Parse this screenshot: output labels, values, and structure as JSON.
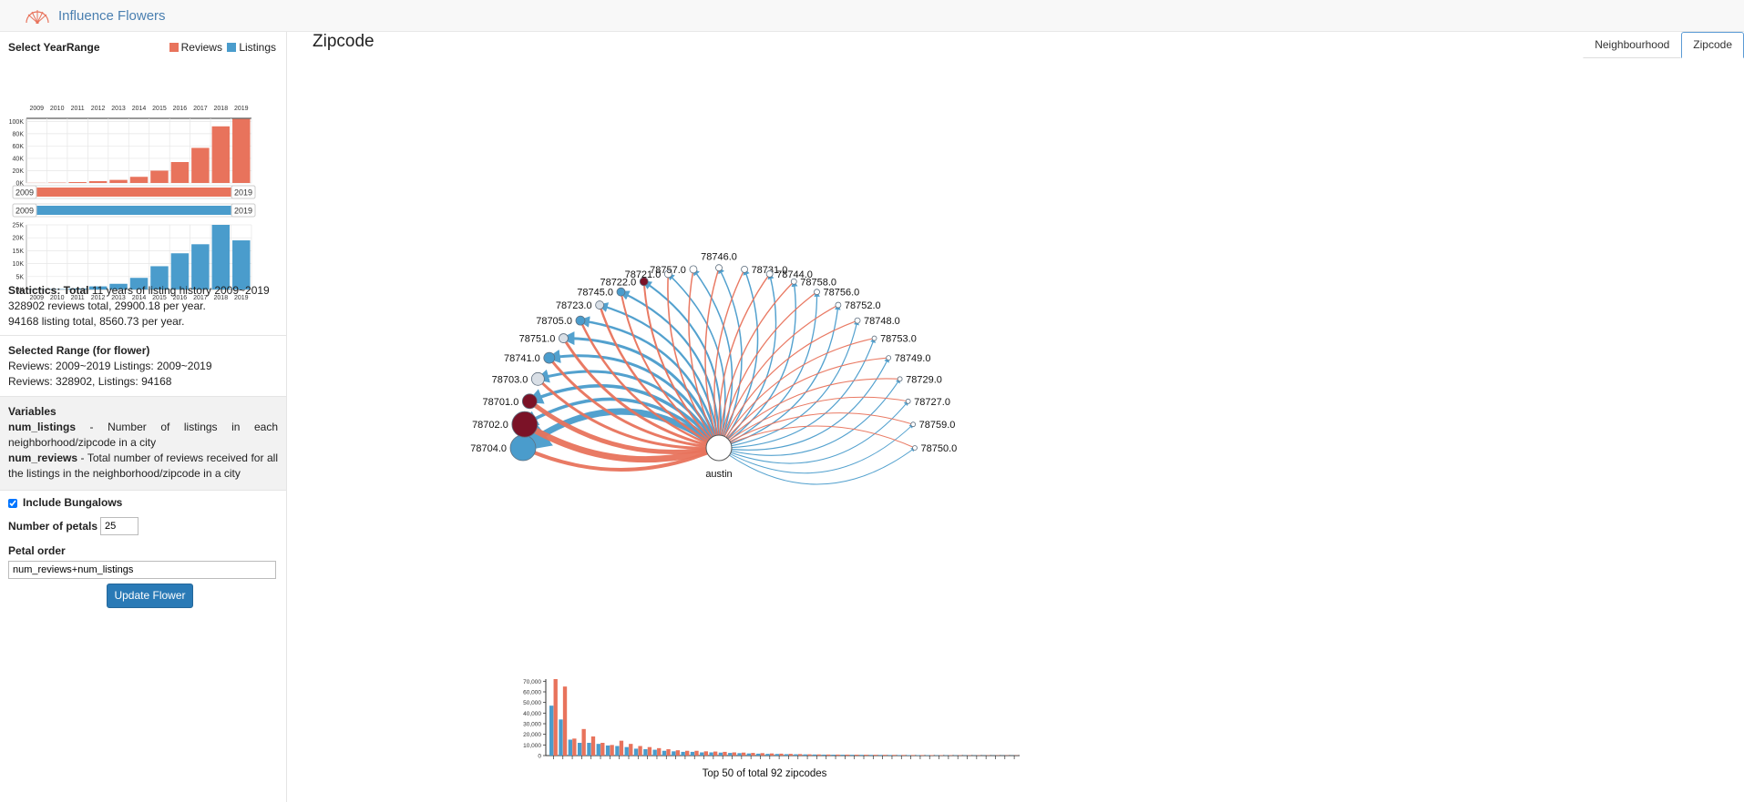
{
  "app": {
    "title": "Influence Flowers"
  },
  "colors": {
    "reviews": "#e8735c",
    "listings": "#4a9ccc",
    "dark_node": "#7b1227",
    "light_node": "#d9dfe6"
  },
  "sidebar": {
    "year_range_label": "Select YearRange",
    "legend": {
      "reviews": "Reviews",
      "listings": "Listings"
    },
    "years": [
      "2009",
      "2010",
      "2011",
      "2012",
      "2013",
      "2014",
      "2015",
      "2016",
      "2017",
      "2018",
      "2019"
    ],
    "reviews_axis": [
      "100K",
      "80K",
      "60K",
      "40K",
      "20K",
      "0K"
    ],
    "listings_axis": [
      "25K",
      "20K",
      "15K",
      "10K",
      "5K",
      "0K"
    ],
    "reviews_slider": {
      "start": "2009",
      "end": "2019"
    },
    "listings_slider": {
      "start": "2009",
      "end": "2019"
    },
    "stats_bold": "Statictics: Total",
    "stats_line1": "11 years of listing history 2009~2019",
    "stats_line2": "328902 reviews total, 29900.18 per year.",
    "stats_line3": "94168 listing total, 8560.73 per year.",
    "selected_title": "Selected Range (for flower)",
    "selected_line1": "Reviews: 2009~2019 Listings: 2009~2019",
    "selected_line2": "Reviews: 328902, Listings: 94168",
    "variables_title": "Variables",
    "var1_name": "num_listings",
    "var1_desc": " - Number of listings in each neighborhood/zipcode in a city",
    "var2_name": "num_reviews",
    "var2_desc": " - Total number of reviews received for all the listings in the neighborhood/zipcode in a city",
    "include_bungalows": "Include Bungalows",
    "petals_label": "Number of petals",
    "petals_value": "25",
    "petal_order_label": "Petal order",
    "petal_order_value": "num_reviews+num_listings",
    "update_button": "Update Flower"
  },
  "main": {
    "title": "Zipcode",
    "tabs": [
      "Neighbourhood",
      "Zipcode"
    ],
    "center_label": "austin",
    "flower_nodes": [
      {
        "label": "78704.0",
        "type": "listings"
      },
      {
        "label": "78702.0",
        "type": "dark"
      },
      {
        "label": "78701.0",
        "type": "dark"
      },
      {
        "label": "78703.0",
        "type": "light"
      },
      {
        "label": "78741.0",
        "type": "listings"
      },
      {
        "label": "78751.0",
        "type": "light"
      },
      {
        "label": "78705.0",
        "type": "listings"
      },
      {
        "label": "78723.0",
        "type": "light"
      },
      {
        "label": "78745.0",
        "type": "listings"
      },
      {
        "label": "78722.0",
        "type": "dark"
      },
      {
        "label": "78721.0",
        "type": "white"
      },
      {
        "label": "78757.0",
        "type": "white"
      },
      {
        "label": "78746.0",
        "type": "white"
      },
      {
        "label": "78731.0",
        "type": "white"
      },
      {
        "label": "78744.0",
        "type": "white"
      },
      {
        "label": "78758.0",
        "type": "white"
      },
      {
        "label": "78756.0",
        "type": "white"
      },
      {
        "label": "78752.0",
        "type": "white"
      },
      {
        "label": "78748.0",
        "type": "white"
      },
      {
        "label": "78753.0",
        "type": "white"
      },
      {
        "label": "78749.0",
        "type": "white"
      },
      {
        "label": "78729.0",
        "type": "white"
      },
      {
        "label": "78727.0",
        "type": "white"
      },
      {
        "label": "78759.0",
        "type": "white"
      },
      {
        "label": "78750.0",
        "type": "white"
      }
    ],
    "bottom_caption": "Top 50 of total 92 zipcodes"
  },
  "chart_data": [
    {
      "type": "bar",
      "title": "",
      "categories": [
        "2009",
        "2010",
        "2011",
        "2012",
        "2013",
        "2014",
        "2015",
        "2016",
        "2017",
        "2018",
        "2019"
      ],
      "series": [
        {
          "name": "Reviews",
          "values": [
            200,
            600,
            1500,
            3000,
            5000,
            10000,
            20000,
            34000,
            57000,
            92000,
            104000
          ]
        }
      ],
      "ylim": [
        0,
        105000
      ]
    },
    {
      "type": "bar",
      "title": "",
      "categories": [
        "2009",
        "2010",
        "2011",
        "2012",
        "2013",
        "2014",
        "2015",
        "2016",
        "2017",
        "2018",
        "2019"
      ],
      "series": [
        {
          "name": "Listings",
          "values": [
            50,
            150,
            400,
            1200,
            2200,
            4500,
            9000,
            14000,
            17500,
            26000,
            19000
          ]
        }
      ],
      "ylim": [
        0,
        25000
      ]
    },
    {
      "type": "bar",
      "title": "",
      "xlabel": "Top 50 of total 92 zipcodes",
      "ytick_labels": [
        "0",
        "10,000",
        "20,000",
        "30,000",
        "40,000",
        "50,000",
        "60,000",
        "70,000"
      ],
      "ylim": [
        0,
        72000
      ],
      "series": [
        {
          "name": "Listings",
          "values": [
            47000,
            34000,
            15000,
            12000,
            12000,
            11000,
            9500,
            9000,
            8000,
            6500,
            6000,
            5500,
            4500,
            4000,
            3500,
            3500,
            3000,
            3000,
            2800,
            2500,
            2300,
            2000,
            1800,
            1600,
            1500,
            1300,
            1200,
            1100,
            1000,
            900,
            850,
            800,
            750,
            700,
            650,
            600,
            550,
            500,
            450,
            400,
            380,
            350,
            320,
            300,
            280,
            250,
            220,
            200,
            180,
            150
          ]
        },
        {
          "name": "Reviews",
          "values": [
            72000,
            65000,
            16000,
            25000,
            18000,
            12000,
            10000,
            14000,
            11000,
            9000,
            8000,
            7000,
            6000,
            5000,
            4500,
            4500,
            4000,
            3800,
            3500,
            3000,
            2800,
            2500,
            2300,
            2000,
            1800,
            1600,
            1400,
            1200,
            1100,
            1000,
            950,
            900,
            850,
            800,
            750,
            700,
            650,
            600,
            550,
            500,
            450,
            400,
            380,
            350,
            320,
            300,
            280,
            250,
            220,
            200
          ]
        }
      ]
    }
  ]
}
